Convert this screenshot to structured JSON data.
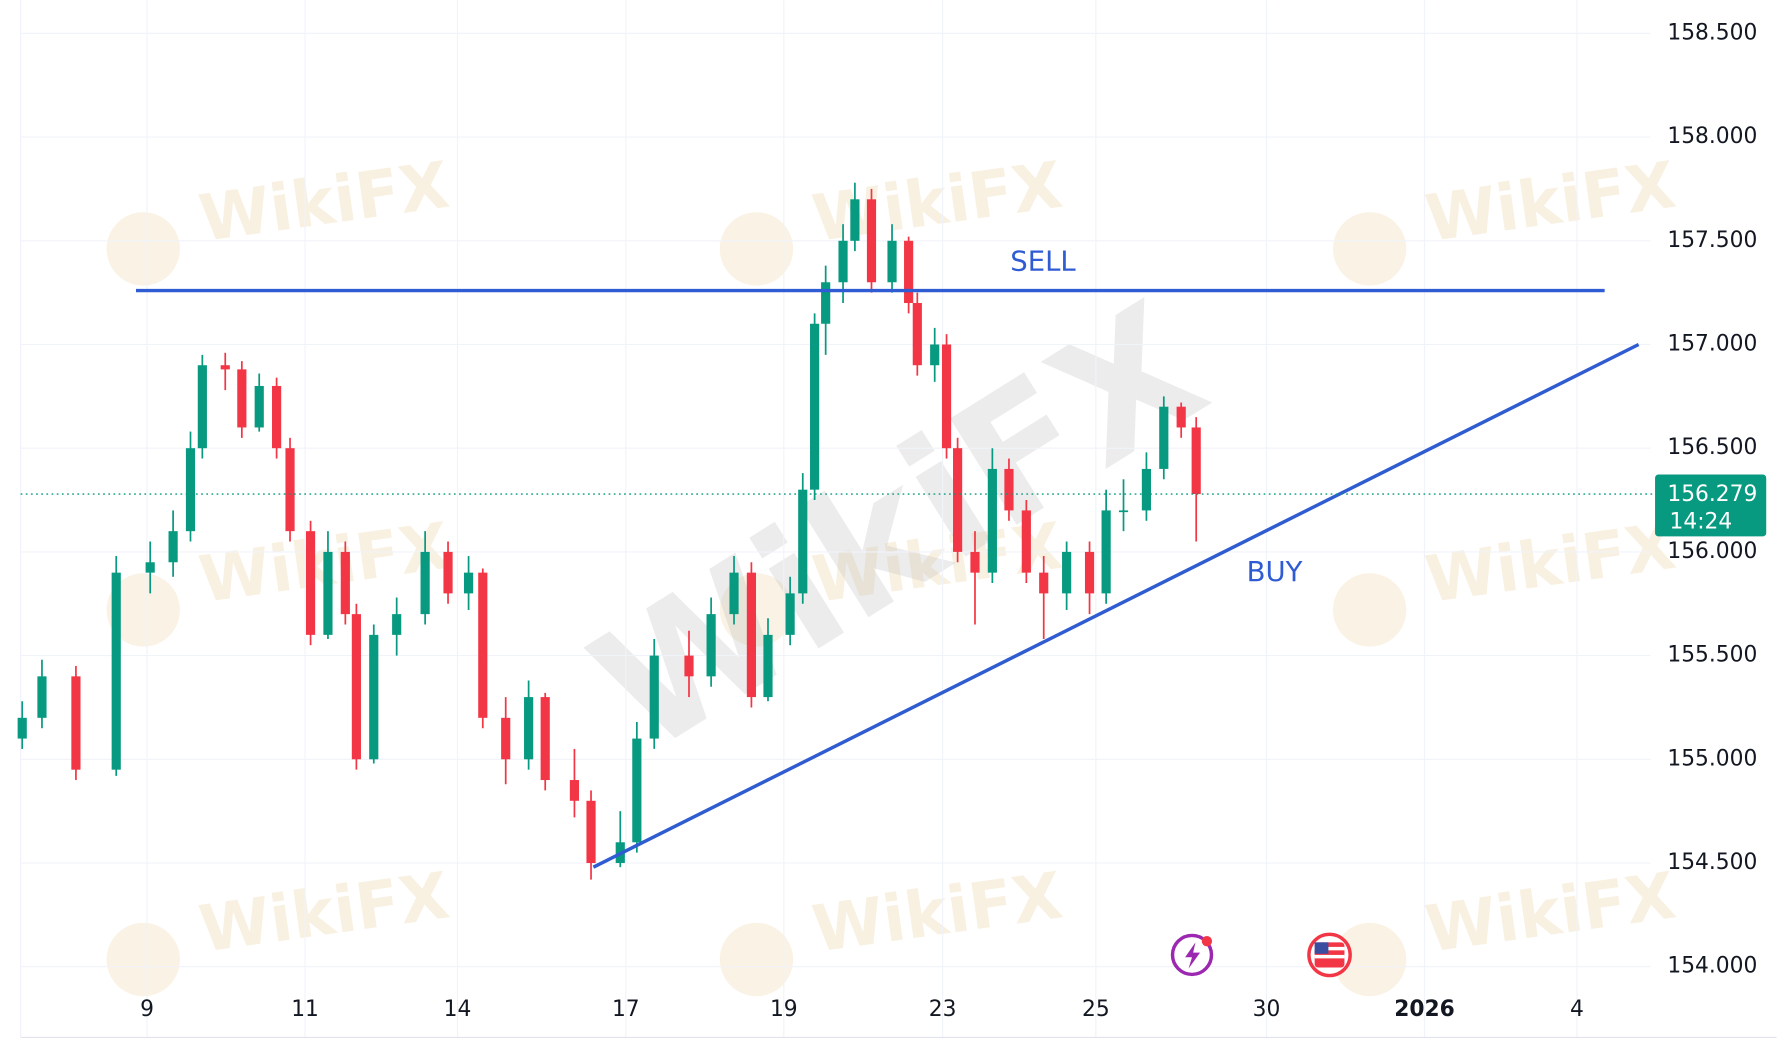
{
  "chart_data": {
    "type": "candlestick",
    "watermark": "WikiFX",
    "x": [
      -1.58,
      -1.33,
      -0.9,
      -0.39,
      0.04,
      0.33,
      0.55,
      0.7,
      0.99,
      1.2,
      1.42,
      1.64,
      1.81,
      2.07,
      2.29,
      2.51,
      2.65,
      2.87,
      3.16,
      3.52,
      3.81,
      4.07,
      4.25,
      4.54,
      4.83,
      5.04,
      5.41,
      5.62,
      5.99,
      6.2,
      6.42,
      6.86,
      7.14,
      7.43,
      7.65,
      7.86,
      8.14,
      8.3,
      8.45,
      8.59,
      8.81,
      8.96,
      9.17,
      9.43,
      9.64,
      9.75,
      9.97,
      10.12,
      10.26,
      10.48,
      10.7,
      10.91,
      11.13,
      11.35,
      11.64,
      11.93,
      12.14,
      12.36,
      12.65,
      12.87,
      13.09,
      13.28
    ],
    "open": [
      155.1,
      155.2,
      155.4,
      154.95,
      155.9,
      155.95,
      156.1,
      156.5,
      156.9,
      156.88,
      156.6,
      156.8,
      156.5,
      156.1,
      155.6,
      156.0,
      155.7,
      155.0,
      155.6,
      155.7,
      156.0,
      155.8,
      155.9,
      155.2,
      155.0,
      155.3,
      154.9,
      154.8,
      154.5,
      154.6,
      155.1,
      155.5,
      155.4,
      155.7,
      155.9,
      155.3,
      155.6,
      155.8,
      156.3,
      157.1,
      157.3,
      157.5,
      157.7,
      157.3,
      157.5,
      157.2,
      156.9,
      157.0,
      156.5,
      156.0,
      155.9,
      156.4,
      156.2,
      155.9,
      155.8,
      156.0,
      155.8,
      156.2,
      156.2,
      156.4,
      156.7,
      156.6
    ],
    "high": [
      155.28,
      155.48,
      155.45,
      155.98,
      156.05,
      156.2,
      156.58,
      156.95,
      156.96,
      156.92,
      156.86,
      156.84,
      156.55,
      156.15,
      156.1,
      156.05,
      155.75,
      155.65,
      155.78,
      156.1,
      156.05,
      155.98,
      155.92,
      155.3,
      155.38,
      155.32,
      155.05,
      154.85,
      154.75,
      155.18,
      155.58,
      155.62,
      155.78,
      155.98,
      155.95,
      155.68,
      155.88,
      156.38,
      157.15,
      157.38,
      157.58,
      157.78,
      157.75,
      157.58,
      157.52,
      157.25,
      157.08,
      157.05,
      156.55,
      156.1,
      156.5,
      156.45,
      156.25,
      155.98,
      156.05,
      156.05,
      156.3,
      156.35,
      156.48,
      156.75,
      156.72,
      156.65
    ],
    "low": [
      155.05,
      155.15,
      154.9,
      154.92,
      155.8,
      155.88,
      156.05,
      156.45,
      156.78,
      156.55,
      156.58,
      156.45,
      156.05,
      155.55,
      155.58,
      155.65,
      154.95,
      154.98,
      155.5,
      155.65,
      155.75,
      155.72,
      155.15,
      154.88,
      154.95,
      154.85,
      154.72,
      154.42,
      154.48,
      154.55,
      155.05,
      155.3,
      155.35,
      155.65,
      155.25,
      155.28,
      155.55,
      155.75,
      156.25,
      156.95,
      157.2,
      157.45,
      157.25,
      157.25,
      157.15,
      156.85,
      156.82,
      156.45,
      155.95,
      155.65,
      155.85,
      156.15,
      155.85,
      155.58,
      155.72,
      155.7,
      155.75,
      156.1,
      156.15,
      156.35,
      156.55,
      156.05
    ],
    "close": [
      155.2,
      155.4,
      154.95,
      155.9,
      155.95,
      156.1,
      156.5,
      156.9,
      156.88,
      156.6,
      156.8,
      156.5,
      156.1,
      155.6,
      156.0,
      155.7,
      155.0,
      155.6,
      155.7,
      156.0,
      155.8,
      155.9,
      155.2,
      155.0,
      155.3,
      154.9,
      154.8,
      154.5,
      154.6,
      155.1,
      155.5,
      155.4,
      155.7,
      155.9,
      155.3,
      155.6,
      155.8,
      156.3,
      157.1,
      157.3,
      157.5,
      157.7,
      157.3,
      157.5,
      157.2,
      156.9,
      157.0,
      156.5,
      156.0,
      155.9,
      156.4,
      156.2,
      155.9,
      155.8,
      156.0,
      155.8,
      156.2,
      156.2,
      156.4,
      156.7,
      156.6,
      156.279
    ],
    "up_color": "#089981",
    "down_color": "#f23645",
    "xlim": [
      -1.6,
      19.03
    ],
    "xticks": [
      {
        "value": 0,
        "label": "9"
      },
      {
        "value": 2,
        "label": "11"
      },
      {
        "value": 3.93,
        "label": "14"
      },
      {
        "value": 6.06,
        "label": "17"
      },
      {
        "value": 8.06,
        "label": "19"
      },
      {
        "value": 10.07,
        "label": "23"
      },
      {
        "value": 12.01,
        "label": "25"
      },
      {
        "value": 14.17,
        "label": "30"
      },
      {
        "value": 16.17,
        "label": "2026"
      },
      {
        "value": 18.1,
        "label": "4"
      }
    ],
    "ylim": [
      153.88,
      158.66
    ],
    "yticks": [
      {
        "value": 154,
        "label": "154.000"
      },
      {
        "value": 154.5,
        "label": "154.500"
      },
      {
        "value": 155,
        "label": "155.000"
      },
      {
        "value": 155.5,
        "label": "155.500"
      },
      {
        "value": 156,
        "label": "156.000"
      },
      {
        "value": 156.5,
        "label": "156.500"
      },
      {
        "value": 157,
        "label": "157.000"
      },
      {
        "value": 157.5,
        "label": "157.500"
      },
      {
        "value": 158,
        "label": "158.000"
      },
      {
        "value": 158.5,
        "label": "158.500"
      }
    ],
    "grid": true,
    "last_price": 156.279,
    "countdown": "14:24",
    "lines": [
      {
        "label": "SELL",
        "color": "#2f5bd3",
        "x": [
          -0.14,
          18.45
        ],
        "y": [
          157.26,
          157.26
        ]
      },
      {
        "label": "BUY",
        "color": "#2f5bd3",
        "x": [
          5.65,
          18.88
        ],
        "y": [
          154.48,
          157.0
        ]
      }
    ]
  }
}
